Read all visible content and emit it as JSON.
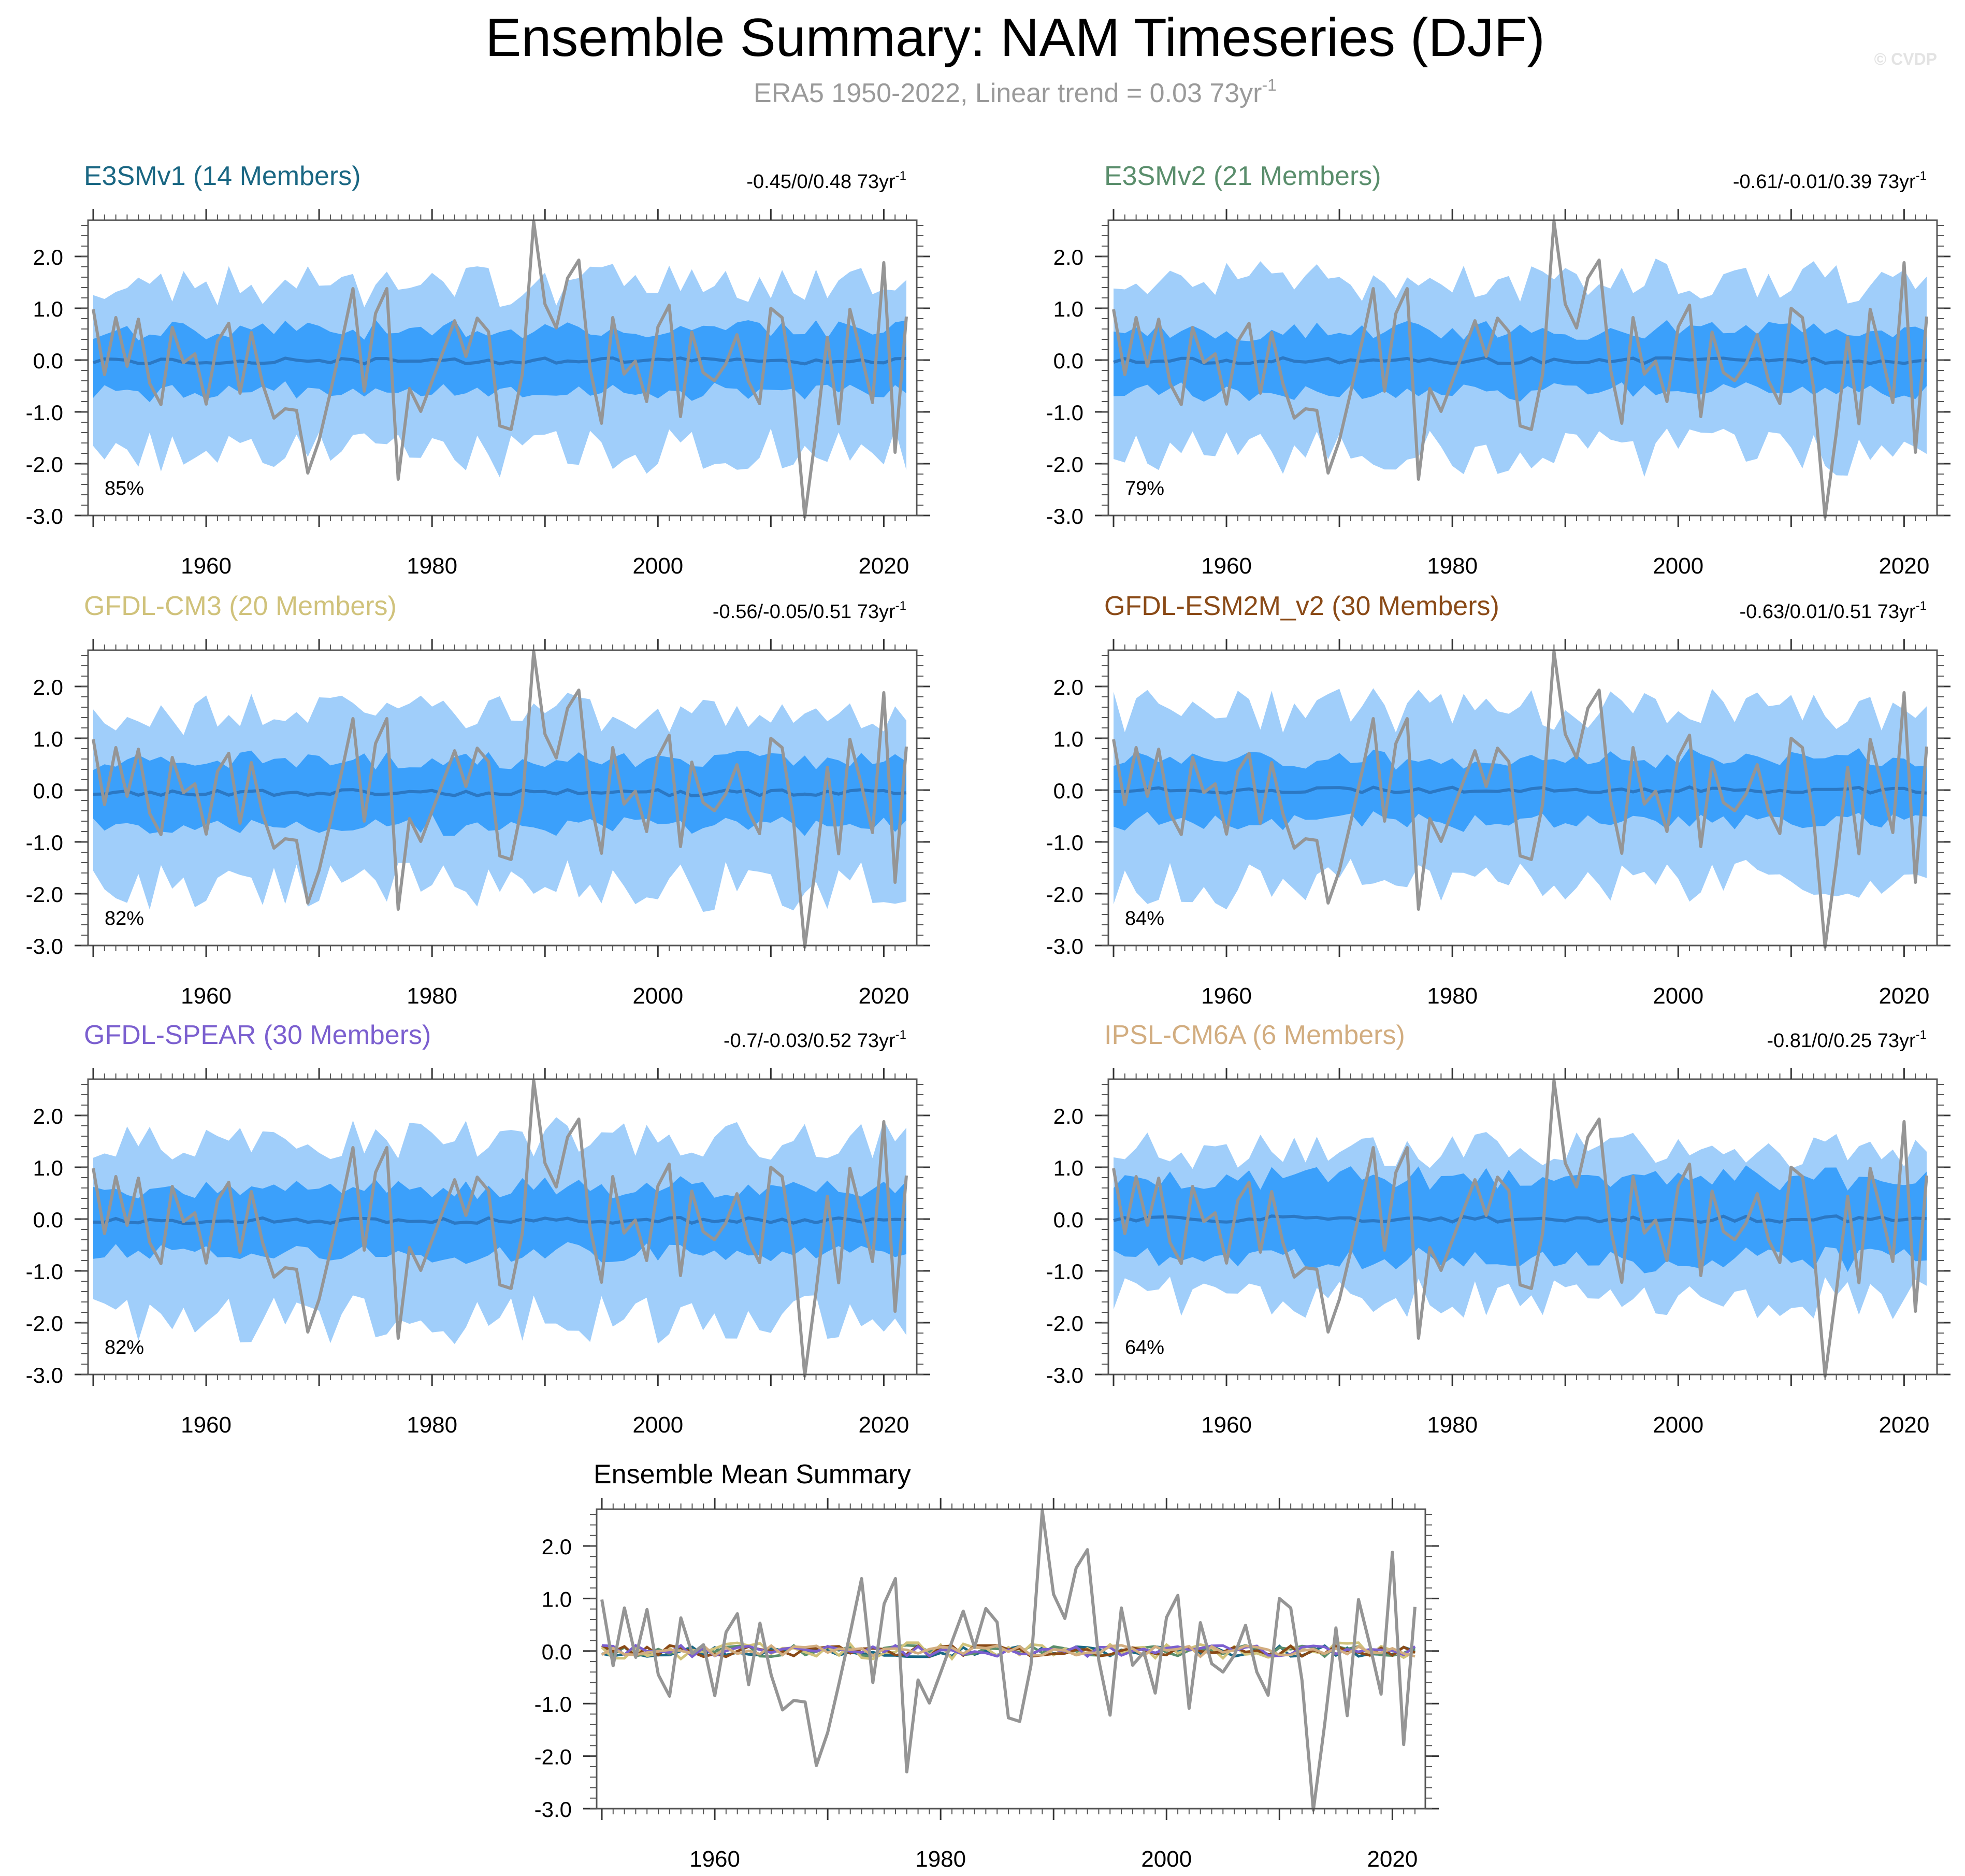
{
  "title": "Ensemble Summary: NAM Timeseries (DJF)",
  "subtitle": {
    "text": "ERA5 1950-2022, Linear trend = 0.03 73yr",
    "sup": "-1"
  },
  "watermark": "© CVDP",
  "colors": {
    "outer_band": "#a0cefa",
    "inner_band": "#3ba0fb",
    "ens_mean": "#2b78c4",
    "obs": "#959595"
  },
  "chart_data": {
    "type": "line",
    "x_start": 1950,
    "xlim": [
      1950,
      2022
    ],
    "ylim": [
      -3.0,
      2.7
    ],
    "xticks": [
      1960,
      1980,
      2000,
      2020
    ],
    "yticks": [
      2.0,
      1.0,
      0.0,
      -1.0,
      -2.0,
      -3.0
    ],
    "ytick_labels": [
      "2.0",
      "1.0",
      "0.0",
      "-1.0",
      "-2.0",
      "-3.0"
    ],
    "observation": {
      "name": "ERA5",
      "values": [
        0.98,
        -0.28,
        0.82,
        -0.12,
        0.79,
        -0.45,
        -0.86,
        0.63,
        -0.05,
        0.12,
        -0.85,
        0.36,
        0.71,
        -0.64,
        0.53,
        -0.46,
        -1.12,
        -0.94,
        -0.97,
        -2.18,
        -1.55,
        -0.62,
        0.35,
        1.38,
        -0.6,
        0.9,
        1.38,
        -2.3,
        -0.55,
        -0.99,
        -0.41,
        0.18,
        0.76,
        0.07,
        0.81,
        0.55,
        -1.27,
        -1.34,
        -0.27,
        2.68,
        1.08,
        0.62,
        1.58,
        1.93,
        -0.17,
        -1.22,
        0.82,
        -0.27,
        -0.02,
        -0.8,
        0.64,
        1.06,
        -1.09,
        0.54,
        -0.24,
        -0.4,
        -0.08,
        0.49,
        -0.4,
        -0.84,
        1.0,
        0.82,
        -0.56,
        -3.03,
        -1.4,
        0.44,
        -1.23,
        0.98,
        0.12,
        -0.82,
        1.88,
        -1.78,
        0.84
      ]
    },
    "panels": [
      {
        "name": "E3SMv1",
        "members": 14,
        "label": "E3SMv1 (14 Members)",
        "color": "#1a6783",
        "range": "-0.45/0/0.48 73yr",
        "range_sup": "-1",
        "pct": "85%",
        "seed": 11,
        "outer": 1.4,
        "inner": 0.62,
        "mean": -0.02
      },
      {
        "name": "E3SMv2",
        "members": 21,
        "label": "E3SMv2 (21 Members)",
        "color": "#5a8e6c",
        "range": "-0.61/-0.01/0.39 73yr",
        "range_sup": "-1",
        "pct": "79%",
        "seed": 23,
        "outer": 1.45,
        "inner": 0.6,
        "mean": -0.01
      },
      {
        "name": "GFDL-CM3",
        "members": 20,
        "label": "GFDL-CM3 (20 Members)",
        "color": "#d0c27b",
        "range": "-0.56/-0.05/0.51 73yr",
        "range_sup": "-1",
        "pct": "82%",
        "seed": 37,
        "outer": 1.45,
        "inner": 0.65,
        "mean": -0.05
      },
      {
        "name": "GFDL-ESM2M_v2",
        "members": 30,
        "label": "GFDL-ESM2M_v2 (30 Members)",
        "color": "#8a4a17",
        "range": "-0.63/0.01/0.51 73yr",
        "range_sup": "-1",
        "pct": "84%",
        "seed": 41,
        "outer": 1.45,
        "inner": 0.62,
        "mean": 0.0
      },
      {
        "name": "GFDL-SPEAR",
        "members": 30,
        "label": "GFDL-SPEAR (30 Members)",
        "color": "#7b5fcf",
        "range": "-0.7/-0.03/0.52 73yr",
        "range_sup": "-1",
        "pct": "82%",
        "seed": 53,
        "outer": 1.5,
        "inner": 0.65,
        "mean": -0.03
      },
      {
        "name": "IPSL-CM6A",
        "members": 6,
        "label": "IPSL-CM6A (6 Members)",
        "color": "#d2ad80",
        "range": "-0.81/0/0.25 73yr",
        "range_sup": "-1",
        "pct": "64%",
        "seed": 67,
        "outer": 1.25,
        "inner": 0.8,
        "mean": 0.0
      }
    ],
    "summary": {
      "title": "Ensemble Mean Summary",
      "series_colors": [
        "#1a6783",
        "#5a8e6c",
        "#d0c27b",
        "#8a4a17",
        "#7b5fcf",
        "#d2ad80"
      ]
    }
  }
}
